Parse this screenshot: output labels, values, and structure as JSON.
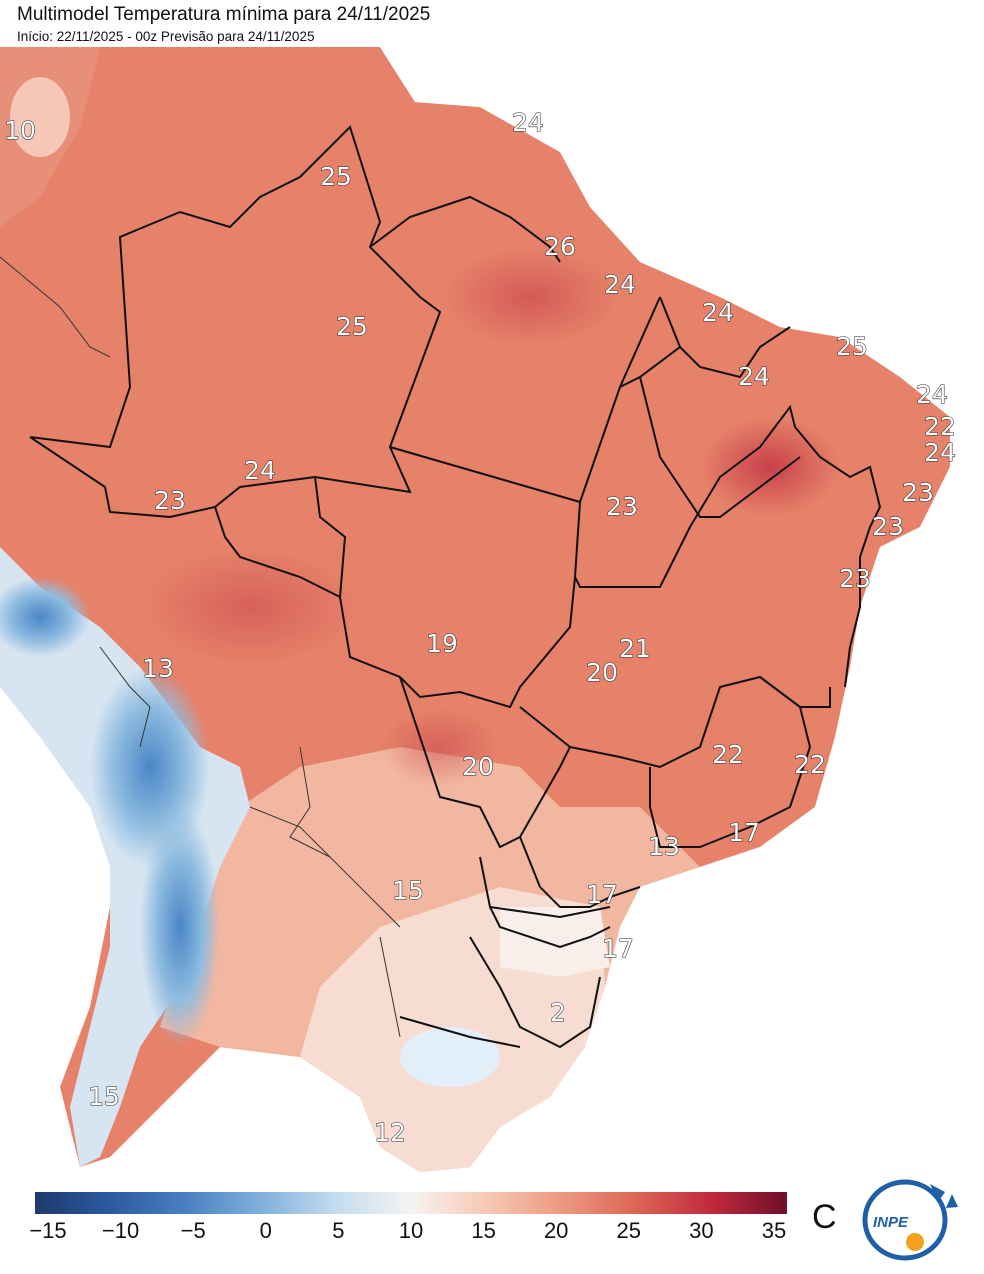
{
  "header": {
    "title": "Multimodel Temperatura mínima para 24/11/2025",
    "subtitle": "Início: 22/11/2025 - 00z  Previsão para 24/11/2025"
  },
  "map_labels": [
    "10",
    "24",
    "25",
    "26",
    "24",
    "24",
    "25",
    "24",
    "25",
    "24",
    "22",
    "24",
    "23",
    "23",
    "23",
    "23",
    "23",
    "24",
    "19",
    "21",
    "20",
    "20",
    "22",
    "22",
    "17",
    "13",
    "17",
    "17",
    "15",
    "2",
    "13",
    "15",
    "12"
  ],
  "colorbar": {
    "min": -15,
    "max": 35,
    "ticks": [
      "−15",
      "−10",
      "−5",
      "0",
      "5",
      "10",
      "15",
      "20",
      "25",
      "30",
      "35"
    ],
    "unit": "C",
    "colors": [
      "#1e3a6b",
      "#2c5aa0",
      "#4a80c0",
      "#7fb0dc",
      "#c4dcef",
      "#f6f3f1",
      "#f6c9b4",
      "#ec9a80",
      "#dc6455",
      "#c02a3c",
      "#6e0f2a"
    ]
  },
  "logo": {
    "text": "INPE"
  }
}
